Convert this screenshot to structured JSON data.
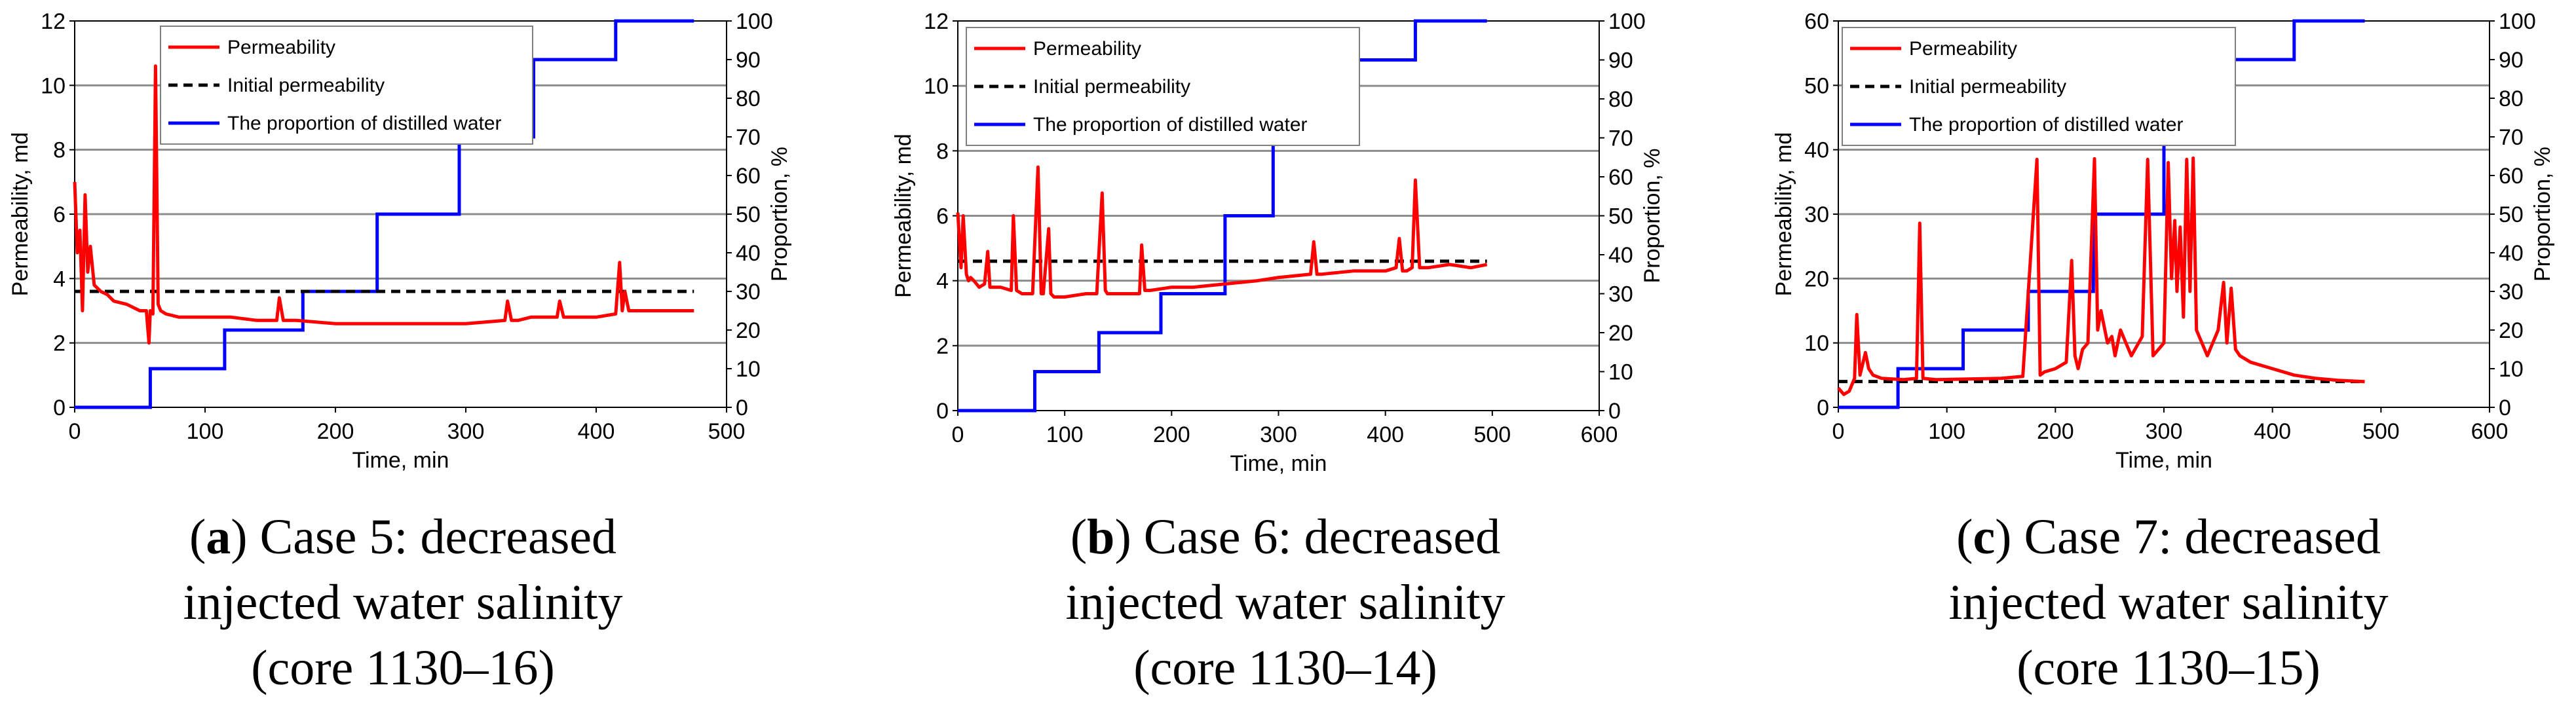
{
  "chart_data": [
    {
      "type": "line",
      "caption_letter": "a",
      "caption_lines": [
        ") Case 5: decreased",
        "injected water salinity",
        "(core 1130–16)"
      ],
      "xlabel": "Time, min",
      "ylabel_left": "Permeability, md",
      "ylabel_right": "Proportion, %",
      "xlim": [
        0,
        500
      ],
      "xticks": [
        "0",
        "100",
        "200",
        "300",
        "400",
        "500"
      ],
      "ylim_left": [
        0,
        12
      ],
      "yticks_left": [
        "0",
        "2",
        "4",
        "6",
        "8",
        "10",
        "12"
      ],
      "ylim_right": [
        0,
        100
      ],
      "yticks_right": [
        "0",
        "10",
        "20",
        "30",
        "40",
        "50",
        "60",
        "70",
        "80",
        "90",
        "100"
      ],
      "legend": [
        "Permeability",
        "Initial permeability",
        "The proportion of distilled water"
      ],
      "initial_permeability": 3.6,
      "series": [
        {
          "name": "Permeability",
          "axis": "left",
          "color": "#ff0000",
          "x": [
            0,
            2,
            4,
            6,
            8,
            10,
            12,
            15,
            20,
            25,
            30,
            40,
            50,
            55,
            57,
            58,
            60,
            62,
            64,
            66,
            70,
            80,
            100,
            120,
            140,
            155,
            157,
            160,
            170,
            200,
            250,
            300,
            330,
            332,
            335,
            340,
            350,
            370,
            372,
            375,
            400,
            415,
            418,
            420,
            422,
            425,
            450,
            470,
            475
          ],
          "y": [
            7.0,
            4.8,
            5.5,
            3.0,
            6.6,
            4.2,
            5.0,
            3.8,
            3.6,
            3.5,
            3.3,
            3.2,
            3.0,
            3.0,
            2.0,
            3.0,
            2.9,
            10.6,
            3.2,
            3.0,
            2.9,
            2.8,
            2.8,
            2.8,
            2.7,
            2.7,
            3.4,
            2.7,
            2.7,
            2.6,
            2.6,
            2.6,
            2.7,
            3.3,
            2.7,
            2.7,
            2.8,
            2.8,
            3.3,
            2.8,
            2.8,
            2.9,
            4.5,
            3.0,
            3.6,
            3.0,
            3.0,
            3.0,
            3.0
          ]
        },
        {
          "name": "The proportion of distilled water",
          "axis": "right",
          "color": "#0000ff",
          "x": [
            0,
            58,
            58,
            115,
            115,
            175,
            175,
            232,
            232,
            295,
            295,
            352,
            352,
            415,
            415,
            475
          ],
          "y": [
            0,
            0,
            10,
            10,
            20,
            20,
            30,
            30,
            50,
            50,
            70,
            70,
            90,
            90,
            100,
            100
          ]
        }
      ]
    },
    {
      "type": "line",
      "caption_letter": "b",
      "caption_lines": [
        ") Case 6: decreased",
        "injected water salinity",
        "(core 1130–14)"
      ],
      "xlabel": "Time, min",
      "ylabel_left": "Permeability, md",
      "ylabel_right": "Proportion, %",
      "xlim": [
        0,
        600
      ],
      "xticks": [
        "0",
        "100",
        "200",
        "300",
        "400",
        "500",
        "600"
      ],
      "ylim_left": [
        0,
        12
      ],
      "yticks_left": [
        "0",
        "2",
        "4",
        "6",
        "8",
        "10",
        "12"
      ],
      "ylim_right": [
        0,
        100
      ],
      "yticks_right": [
        "0",
        "10",
        "20",
        "30",
        "40",
        "50",
        "60",
        "70",
        "80",
        "90",
        "100"
      ],
      "legend": [
        "Permeability",
        "Initial permeability",
        "The proportion of distilled water"
      ],
      "initial_permeability": 4.6,
      "series": [
        {
          "name": "Permeability",
          "axis": "left",
          "color": "#ff0000",
          "x": [
            0,
            3,
            5,
            8,
            10,
            12,
            15,
            20,
            25,
            28,
            30,
            40,
            50,
            52,
            55,
            60,
            70,
            75,
            78,
            80,
            85,
            87,
            90,
            100,
            120,
            130,
            135,
            138,
            140,
            150,
            160,
            170,
            172,
            175,
            180,
            200,
            220,
            250,
            280,
            300,
            330,
            333,
            336,
            340,
            370,
            400,
            410,
            413,
            416,
            420,
            425,
            428,
            432,
            440,
            460,
            480,
            495
          ],
          "y": [
            6.1,
            4.4,
            6.0,
            4.2,
            4.0,
            4.1,
            4.0,
            3.8,
            3.9,
            4.9,
            3.8,
            3.8,
            3.7,
            6.0,
            3.7,
            3.6,
            3.6,
            7.5,
            3.6,
            3.6,
            5.6,
            3.6,
            3.5,
            3.5,
            3.6,
            3.6,
            6.7,
            3.7,
            3.6,
            3.6,
            3.6,
            3.6,
            5.1,
            3.7,
            3.7,
            3.8,
            3.8,
            3.9,
            4.0,
            4.1,
            4.2,
            5.2,
            4.2,
            4.2,
            4.3,
            4.3,
            4.4,
            5.3,
            4.3,
            4.3,
            4.4,
            7.1,
            4.4,
            4.4,
            4.5,
            4.4,
            4.5
          ]
        },
        {
          "name": "The proportion of distilled water",
          "axis": "right",
          "color": "#0000ff",
          "x": [
            0,
            72,
            72,
            132,
            132,
            190,
            190,
            250,
            250,
            295,
            295,
            368,
            368,
            428,
            428,
            495
          ],
          "y": [
            0,
            0,
            10,
            10,
            20,
            20,
            30,
            30,
            50,
            50,
            70,
            70,
            90,
            90,
            100,
            100
          ]
        }
      ]
    },
    {
      "type": "line",
      "caption_letter": "c",
      "caption_lines": [
        ") Case 7: decreased",
        "injected water salinity",
        "(core 1130–15)"
      ],
      "xlabel": "Time, min",
      "ylabel_left": "Permeability, md",
      "ylabel_right": "Proportion, %",
      "xlim": [
        0,
        600
      ],
      "xticks": [
        "0",
        "100",
        "200",
        "300",
        "400",
        "500",
        "600"
      ],
      "ylim_left": [
        0,
        60
      ],
      "yticks_left": [
        "0",
        "10",
        "20",
        "30",
        "40",
        "50",
        "60"
      ],
      "ylim_right": [
        0,
        100
      ],
      "yticks_right": [
        "0",
        "10",
        "20",
        "30",
        "40",
        "50",
        "60",
        "70",
        "80",
        "90",
        "100"
      ],
      "legend": [
        "Permeability",
        "Initial permeability",
        "The proportion of distilled water"
      ],
      "initial_permeability": 4.0,
      "series": [
        {
          "name": "Permeability",
          "axis": "left",
          "color": "#ff0000",
          "x": [
            0,
            5,
            10,
            15,
            17,
            20,
            25,
            28,
            32,
            40,
            60,
            72,
            75,
            78,
            90,
            120,
            150,
            170,
            183,
            186,
            190,
            200,
            210,
            215,
            218,
            221,
            225,
            230,
            236,
            239,
            242,
            248,
            252,
            255,
            260,
            270,
            280,
            285,
            290,
            300,
            304,
            307,
            310,
            312,
            315,
            318,
            321,
            324,
            327,
            330,
            335,
            340,
            350,
            355,
            358,
            362,
            366,
            370,
            380,
            400,
            420,
            440,
            460,
            485
          ],
          "y": [
            3.0,
            2.0,
            2.5,
            4.5,
            14.4,
            5.0,
            8.5,
            6.0,
            5.0,
            4.5,
            4.3,
            4.5,
            28.6,
            4.5,
            4.3,
            4.4,
            4.5,
            4.8,
            38.5,
            5.0,
            5.5,
            6.0,
            7.0,
            22.8,
            8.0,
            6.0,
            9.0,
            10.0,
            38.6,
            12.0,
            15.0,
            10.0,
            11.0,
            8.0,
            12.0,
            8.0,
            11.0,
            38.5,
            8.0,
            10.0,
            38.0,
            20.0,
            29.0,
            18.0,
            28.0,
            14.0,
            38.5,
            18.0,
            38.7,
            12.0,
            10.0,
            8.0,
            12.0,
            19.4,
            10.0,
            18.5,
            9.0,
            8.0,
            7.0,
            6.0,
            5.0,
            4.5,
            4.2,
            4.0
          ]
        },
        {
          "name": "The proportion of distilled water",
          "axis": "right",
          "color": "#0000ff",
          "x": [
            0,
            55,
            55,
            115,
            115,
            175,
            175,
            235,
            235,
            300,
            300,
            360,
            360,
            420,
            420,
            485
          ],
          "y": [
            0,
            0,
            10,
            10,
            20,
            20,
            30,
            30,
            50,
            50,
            70,
            70,
            90,
            90,
            100,
            100
          ]
        }
      ]
    }
  ]
}
